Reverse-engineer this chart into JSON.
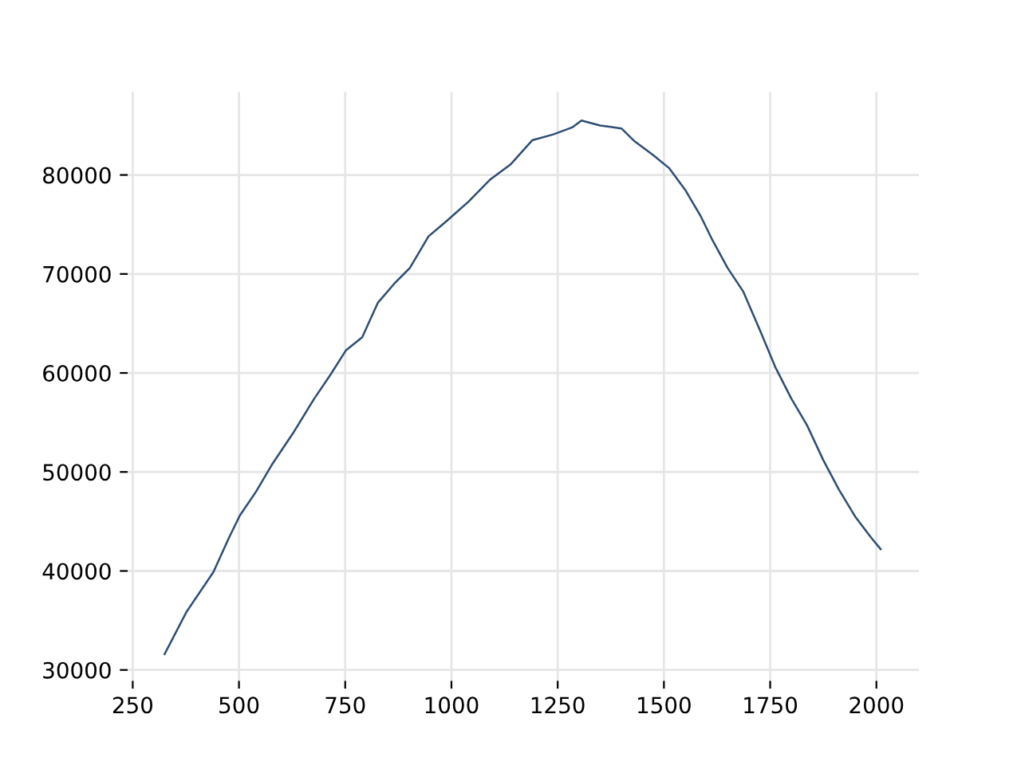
{
  "chart_data": {
    "type": "line",
    "x": [
      325,
      377,
      440,
      477,
      502,
      540,
      577,
      627,
      677,
      715,
      752,
      790,
      827,
      865,
      902,
      946,
      990,
      1040,
      1090,
      1140,
      1190,
      1240,
      1284,
      1306,
      1350,
      1400,
      1431,
      1475,
      1512,
      1550,
      1587,
      1612,
      1650,
      1687,
      1725,
      1762,
      1800,
      1837,
      1875,
      1912,
      1950,
      1987,
      2010
    ],
    "series": [
      {
        "color": "#2e4d74",
        "values": [
          31600,
          35900,
          39900,
          43400,
          45600,
          48000,
          50700,
          53900,
          57400,
          59800,
          62300,
          63600,
          67100,
          69000,
          70600,
          73800,
          75400,
          77300,
          79500,
          81100,
          83500,
          84100,
          84800,
          85500,
          85000,
          84700,
          83400,
          82000,
          80700,
          78500,
          75800,
          73600,
          70600,
          68200,
          64400,
          60600,
          57400,
          54700,
          51200,
          48200,
          45500,
          43400,
          42200
        ]
      }
    ],
    "xlim": [
      238,
      2100
    ],
    "ylim": [
      28900,
      88400
    ],
    "xticks": [
      250,
      500,
      750,
      1000,
      1250,
      1500,
      1750,
      2000
    ],
    "yticks": [
      30000,
      40000,
      50000,
      60000,
      70000,
      80000
    ],
    "grid": true,
    "line_style": "solid",
    "marker": "none"
  }
}
